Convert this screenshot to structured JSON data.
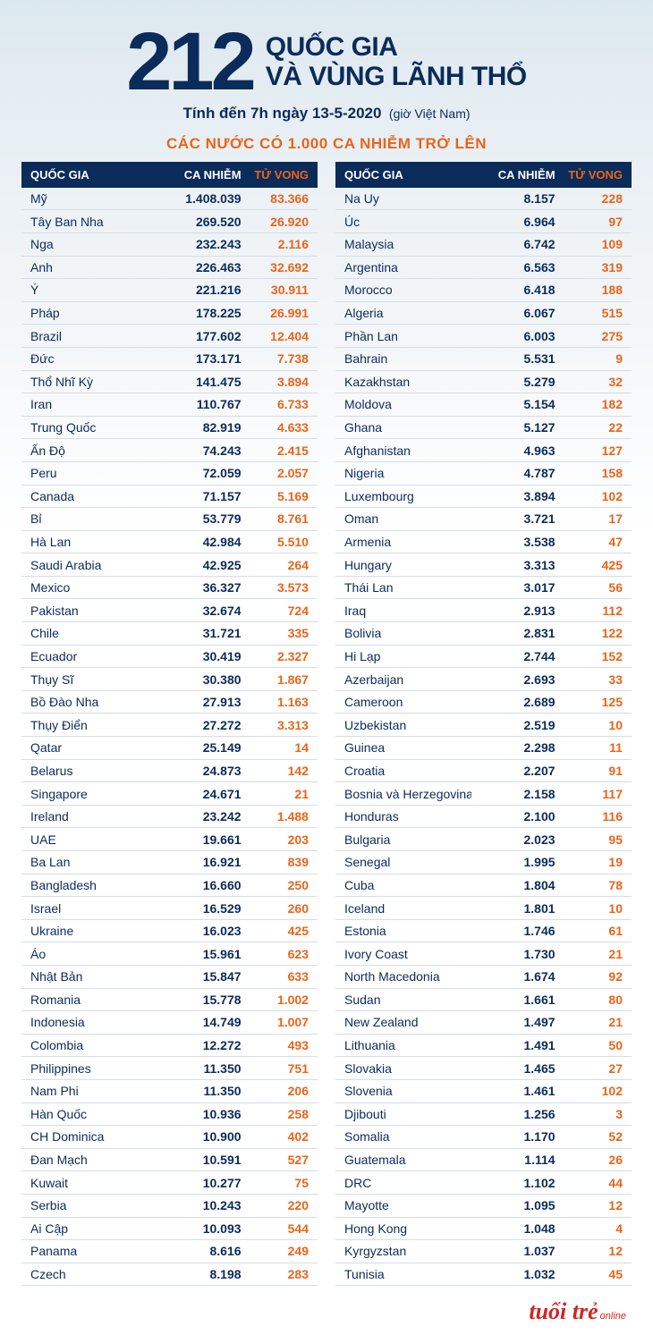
{
  "colors": {
    "primary": "#0b2b5a",
    "accent": "#e8651a",
    "logo": "#d52323",
    "row_border": "#d5dde4",
    "bg_top": "#dce8ef",
    "bg_bottom": "#ffffff"
  },
  "fonts": {
    "body_family": "Arial, Helvetica, sans-serif",
    "big_num_size": 92,
    "header_size": 30,
    "subtitle_size": 17,
    "banner_size": 17,
    "row_size": 14,
    "th_size": 13
  },
  "header": {
    "big_number": "212",
    "line1": "QUỐC GIA",
    "line2": "VÀ VÙNG LÃNH THỔ",
    "subtitle": "Tính đến 7h ngày 13-5-2020",
    "subtitle_note": "(giờ Việt Nam)"
  },
  "banner": "CÁC NƯỚC CÓ 1.000 CA NHIỄM TRỞ LÊN",
  "columns": {
    "country": "QUỐC GIA",
    "cases": "CA NHIỄM",
    "deaths": "TỬ VONG"
  },
  "left": [
    {
      "c": "Mỹ",
      "n": "1.408.039",
      "d": "83.366"
    },
    {
      "c": "Tây Ban Nha",
      "n": "269.520",
      "d": "26.920"
    },
    {
      "c": "Nga",
      "n": "232.243",
      "d": "2.116"
    },
    {
      "c": "Anh",
      "n": "226.463",
      "d": "32.692"
    },
    {
      "c": "Ý",
      "n": "221.216",
      "d": "30.911"
    },
    {
      "c": "Pháp",
      "n": "178.225",
      "d": "26.991"
    },
    {
      "c": "Brazil",
      "n": "177.602",
      "d": "12.404"
    },
    {
      "c": "Đức",
      "n": "173.171",
      "d": "7.738"
    },
    {
      "c": "Thổ Nhĩ Kỳ",
      "n": "141.475",
      "d": "3.894"
    },
    {
      "c": "Iran",
      "n": "110.767",
      "d": "6.733"
    },
    {
      "c": "Trung Quốc",
      "n": "82.919",
      "d": "4.633"
    },
    {
      "c": "Ấn Độ",
      "n": "74.243",
      "d": "2.415"
    },
    {
      "c": "Peru",
      "n": "72.059",
      "d": "2.057"
    },
    {
      "c": "Canada",
      "n": "71.157",
      "d": "5.169"
    },
    {
      "c": "Bỉ",
      "n": "53.779",
      "d": "8.761"
    },
    {
      "c": "Hà Lan",
      "n": "42.984",
      "d": "5.510"
    },
    {
      "c": "Saudi Arabia",
      "n": "42.925",
      "d": "264"
    },
    {
      "c": "Mexico",
      "n": "36.327",
      "d": "3.573"
    },
    {
      "c": "Pakistan",
      "n": "32.674",
      "d": "724"
    },
    {
      "c": "Chile",
      "n": "31.721",
      "d": "335"
    },
    {
      "c": "Ecuador",
      "n": "30.419",
      "d": "2.327"
    },
    {
      "c": "Thụy Sĩ",
      "n": "30.380",
      "d": "1.867"
    },
    {
      "c": "Bồ Đào Nha",
      "n": "27.913",
      "d": "1.163"
    },
    {
      "c": "Thụy Điển",
      "n": "27.272",
      "d": "3.313"
    },
    {
      "c": "Qatar",
      "n": "25.149",
      "d": "14"
    },
    {
      "c": "Belarus",
      "n": "24.873",
      "d": "142"
    },
    {
      "c": "Singapore",
      "n": "24.671",
      "d": "21"
    },
    {
      "c": "Ireland",
      "n": "23.242",
      "d": "1.488"
    },
    {
      "c": "UAE",
      "n": "19.661",
      "d": "203"
    },
    {
      "c": "Ba Lan",
      "n": "16.921",
      "d": "839"
    },
    {
      "c": "Bangladesh",
      "n": "16.660",
      "d": "250"
    },
    {
      "c": "Israel",
      "n": "16.529",
      "d": "260"
    },
    {
      "c": "Ukraine",
      "n": "16.023",
      "d": "425"
    },
    {
      "c": "Áo",
      "n": "15.961",
      "d": "623"
    },
    {
      "c": "Nhật Bản",
      "n": "15.847",
      "d": "633"
    },
    {
      "c": "Romania",
      "n": "15.778",
      "d": "1.002"
    },
    {
      "c": "Indonesia",
      "n": "14.749",
      "d": "1.007"
    },
    {
      "c": "Colombia",
      "n": "12.272",
      "d": "493"
    },
    {
      "c": "Philippines",
      "n": "11.350",
      "d": "751"
    },
    {
      "c": "Nam Phi",
      "n": "11.350",
      "d": "206"
    },
    {
      "c": "Hàn Quốc",
      "n": "10.936",
      "d": "258"
    },
    {
      "c": "CH Dominica",
      "n": "10.900",
      "d": "402"
    },
    {
      "c": "Đan Mạch",
      "n": "10.591",
      "d": "527"
    },
    {
      "c": "Kuwait",
      "n": "10.277",
      "d": "75"
    },
    {
      "c": "Serbia",
      "n": "10.243",
      "d": "220"
    },
    {
      "c": "Ai Cập",
      "n": "10.093",
      "d": "544"
    },
    {
      "c": "Panama",
      "n": "8.616",
      "d": "249"
    },
    {
      "c": "Czech",
      "n": "8.198",
      "d": "283"
    }
  ],
  "right": [
    {
      "c": "Na Uy",
      "n": "8.157",
      "d": "228"
    },
    {
      "c": "Úc",
      "n": "6.964",
      "d": "97"
    },
    {
      "c": "Malaysia",
      "n": "6.742",
      "d": "109"
    },
    {
      "c": "Argentina",
      "n": "6.563",
      "d": "319"
    },
    {
      "c": "Morocco",
      "n": "6.418",
      "d": "188"
    },
    {
      "c": "Algeria",
      "n": "6.067",
      "d": "515"
    },
    {
      "c": "Phần Lan",
      "n": "6.003",
      "d": "275"
    },
    {
      "c": "Bahrain",
      "n": "5.531",
      "d": "9"
    },
    {
      "c": "Kazakhstan",
      "n": "5.279",
      "d": "32"
    },
    {
      "c": "Moldova",
      "n": "5.154",
      "d": "182"
    },
    {
      "c": "Ghana",
      "n": "5.127",
      "d": "22"
    },
    {
      "c": "Afghanistan",
      "n": "4.963",
      "d": "127"
    },
    {
      "c": "Nigeria",
      "n": "4.787",
      "d": "158"
    },
    {
      "c": "Luxembourg",
      "n": "3.894",
      "d": "102"
    },
    {
      "c": "Oman",
      "n": "3.721",
      "d": "17"
    },
    {
      "c": "Armenia",
      "n": "3.538",
      "d": "47"
    },
    {
      "c": "Hungary",
      "n": "3.313",
      "d": "425"
    },
    {
      "c": "Thái Lan",
      "n": "3.017",
      "d": "56"
    },
    {
      "c": "Iraq",
      "n": "2.913",
      "d": "112"
    },
    {
      "c": "Bolivia",
      "n": "2.831",
      "d": "122"
    },
    {
      "c": "Hi Lạp",
      "n": "2.744",
      "d": "152"
    },
    {
      "c": "Azerbaijan",
      "n": "2.693",
      "d": "33"
    },
    {
      "c": "Cameroon",
      "n": "2.689",
      "d": "125"
    },
    {
      "c": "Uzbekistan",
      "n": "2.519",
      "d": "10"
    },
    {
      "c": "Guinea",
      "n": "2.298",
      "d": "11"
    },
    {
      "c": "Croatia",
      "n": "2.207",
      "d": "91"
    },
    {
      "c": "Bosnia và Herzegovina",
      "n": "2.158",
      "d": "117"
    },
    {
      "c": "Honduras",
      "n": "2.100",
      "d": "116"
    },
    {
      "c": "Bulgaria",
      "n": "2.023",
      "d": "95"
    },
    {
      "c": "Senegal",
      "n": "1.995",
      "d": "19"
    },
    {
      "c": "Cuba",
      "n": "1.804",
      "d": "78"
    },
    {
      "c": "Iceland",
      "n": "1.801",
      "d": "10"
    },
    {
      "c": "Estonia",
      "n": "1.746",
      "d": "61"
    },
    {
      "c": "Ivory Coast",
      "n": "1.730",
      "d": "21"
    },
    {
      "c": "North Macedonia",
      "n": "1.674",
      "d": "92"
    },
    {
      "c": "Sudan",
      "n": "1.661",
      "d": "80"
    },
    {
      "c": "New Zealand",
      "n": "1.497",
      "d": "21"
    },
    {
      "c": "Lithuania",
      "n": "1.491",
      "d": "50"
    },
    {
      "c": "Slovakia",
      "n": "1.465",
      "d": "27"
    },
    {
      "c": "Slovenia",
      "n": "1.461",
      "d": "102"
    },
    {
      "c": "Djibouti",
      "n": "1.256",
      "d": "3"
    },
    {
      "c": "Somalia",
      "n": "1.170",
      "d": "52"
    },
    {
      "c": "Guatemala",
      "n": "1.114",
      "d": "26"
    },
    {
      "c": "DRC",
      "n": "1.102",
      "d": "44"
    },
    {
      "c": "Mayotte",
      "n": "1.095",
      "d": "12"
    },
    {
      "c": "Hong Kong",
      "n": "1.048",
      "d": "4"
    },
    {
      "c": "Kyrgyzstan",
      "n": "1.037",
      "d": "12"
    },
    {
      "c": "Tunisia",
      "n": "1.032",
      "d": "45"
    }
  ],
  "footer": {
    "logo_main": "tuổi trẻ",
    "logo_sub": "online"
  }
}
